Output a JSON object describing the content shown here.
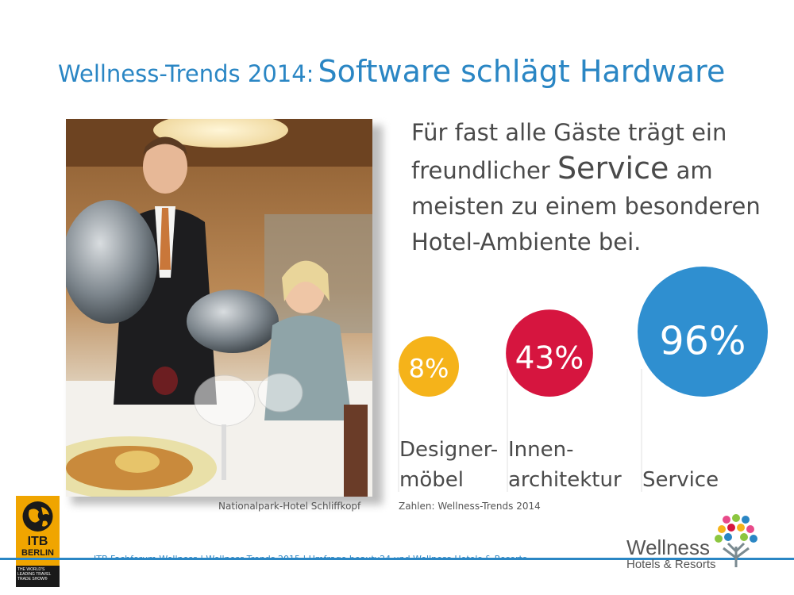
{
  "slide": {
    "title_prefix": "Wellness-Trends 2014:",
    "title_main": "Software schlägt Hardware",
    "headline_part1": "Für fast alle Gäste trägt ein freundlicher",
    "headline_emphasis": "Service",
    "headline_part2": "am meisten zu einem besonderen Hotel-Ambiente bei.",
    "photo_caption": "Nationalpark-Hotel Schliffkopf",
    "source": "Zahlen: Wellness-Trends 2014",
    "footer_text": "ITB Fachforum Wellness | Wellness-Trends 2015 | Umfrage beauty24 und Wellness-Hotels & Resorts",
    "colors": {
      "accent_blue": "#2a86c4",
      "text_gray": "#4a4a4a"
    }
  },
  "logos": {
    "itb_line1": "ITB",
    "itb_line2": "BERLIN",
    "itb_tagline": "THE WORLD'S LEADING TRAVEL TRADE SHOW®",
    "wellness_word": "Wellness",
    "wellness_sub": "Hotels & Resorts"
  },
  "chart_data": {
    "type": "bubble",
    "title": "",
    "unit": "%",
    "categories": [
      {
        "label_lines": [
          "Designer-",
          "möbel"
        ],
        "value": 8,
        "label": "8%",
        "color": "#f5b31a"
      },
      {
        "label_lines": [
          "Innen-",
          "architektur"
        ],
        "value": 43,
        "label": "43%",
        "color": "#d6153f"
      },
      {
        "label_lines": [
          "Service"
        ],
        "value": 96,
        "label": "96%",
        "color": "#2f8fd0"
      }
    ]
  }
}
